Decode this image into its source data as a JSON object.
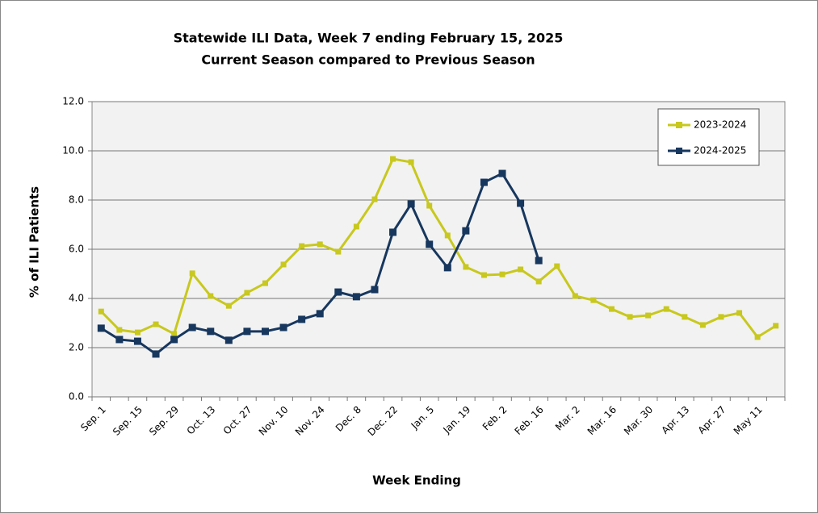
{
  "chart_data": {
    "type": "line",
    "title": "Statewide ILI Data, Week 7 ending February 15, 2025",
    "subtitle": "Current Season compared to Previous Season",
    "x_label": "Week Ending",
    "y_label": "% of ILI Patients",
    "categories": [
      "Sep. 1",
      null,
      "Sep. 15",
      null,
      "Sep. 29",
      null,
      "Oct. 13",
      null,
      "Oct. 27",
      null,
      "Nov. 10",
      null,
      "Nov. 24",
      null,
      "Dec. 8",
      null,
      "Dec. 22",
      null,
      "Jan. 5",
      null,
      "Jan. 19",
      null,
      "Feb. 2",
      null,
      "Feb. 16",
      null,
      "Mar. 2",
      null,
      "Mar. 16",
      null,
      "Mar. 30",
      null,
      "Apr. 13",
      null,
      "Apr. 27",
      null,
      "May 11",
      null
    ],
    "series": [
      {
        "name": "2023-2024",
        "color": "#c8c81e",
        "values": [
          3.47,
          2.72,
          2.62,
          2.95,
          2.56,
          5.02,
          4.1,
          3.7,
          4.23,
          4.62,
          5.38,
          6.13,
          6.2,
          5.9,
          6.92,
          8.03,
          9.67,
          9.54,
          7.77,
          6.56,
          5.28,
          4.95,
          4.98,
          5.18,
          4.69,
          5.31,
          4.1,
          3.93,
          3.57,
          3.25,
          3.31,
          3.57,
          3.25,
          2.92,
          3.25,
          3.41,
          2.43,
          2.89
        ]
      },
      {
        "name": "2024-2025",
        "color": "#17375e",
        "values": [
          2.79,
          2.33,
          2.26,
          1.74,
          2.33,
          2.82,
          2.66,
          2.3,
          2.66,
          2.66,
          2.82,
          3.15,
          3.38,
          4.26,
          4.07,
          4.36,
          6.69,
          7.84,
          6.2,
          5.25,
          6.75,
          8.72,
          9.08,
          7.87,
          5.54,
          null,
          null,
          null,
          null,
          null,
          null,
          null,
          null,
          null,
          null,
          null,
          null,
          null
        ]
      }
    ],
    "ylim": [
      0,
      12
    ],
    "yticks": [
      {
        "value": 0,
        "label": "0.0"
      },
      {
        "value": 2,
        "label": "2.0"
      },
      {
        "value": 4,
        "label": "4.0"
      },
      {
        "value": 6,
        "label": "6.0"
      },
      {
        "value": 8,
        "label": "8.0"
      },
      {
        "value": 10,
        "label": "10.0"
      },
      {
        "value": 12,
        "label": "12.0"
      }
    ],
    "grid": true,
    "legend": "upper right"
  }
}
